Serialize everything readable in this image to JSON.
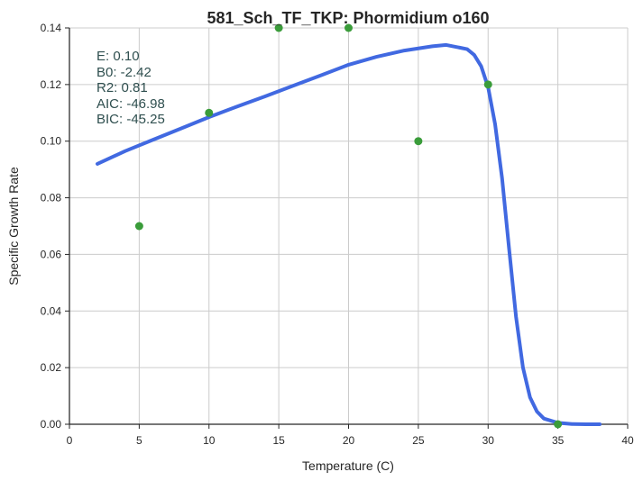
{
  "chart_data": {
    "type": "scatter",
    "title": "581_Sch_TF_TKP: Phormidium o160",
    "xlabel": "Temperature (C)",
    "ylabel": "Specific Growth Rate",
    "xlim": [
      0,
      40
    ],
    "ylim": [
      0,
      0.14
    ],
    "xticks": [
      0,
      5,
      10,
      15,
      20,
      25,
      30,
      35,
      40
    ],
    "yticks": [
      0.0,
      0.02,
      0.04,
      0.06,
      0.08,
      0.1,
      0.12,
      0.14
    ],
    "xtick_labels": [
      "0",
      "5",
      "10",
      "15",
      "20",
      "25",
      "30",
      "35",
      "40"
    ],
    "ytick_labels": [
      "0.00",
      "0.02",
      "0.04",
      "0.06",
      "0.08",
      "0.10",
      "0.12",
      "0.14"
    ],
    "grid": true,
    "points": {
      "color": "#3a9c3a",
      "x": [
        5,
        10,
        15,
        20,
        25,
        30,
        35
      ],
      "y": [
        0.07,
        0.11,
        0.14,
        0.14,
        0.1,
        0.12,
        0.0
      ]
    },
    "fit_curve": {
      "color": "#4169e1",
      "x": [
        2,
        4,
        6,
        8,
        10,
        12,
        14,
        16,
        18,
        20,
        22,
        24,
        26,
        27,
        28,
        28.5,
        29,
        29.5,
        30,
        30.5,
        31,
        31.5,
        32,
        32.5,
        33,
        33.5,
        34,
        35,
        36,
        37,
        38
      ],
      "y": [
        0.092,
        0.0965,
        0.1005,
        0.1045,
        0.1085,
        0.1122,
        0.1158,
        0.1195,
        0.1232,
        0.127,
        0.1298,
        0.132,
        0.1335,
        0.134,
        0.133,
        0.1325,
        0.1305,
        0.1265,
        0.119,
        0.106,
        0.087,
        0.062,
        0.038,
        0.02,
        0.0095,
        0.0045,
        0.002,
        0.0005,
        0.0001,
        0.0,
        0.0
      ]
    },
    "annotations": [
      "E:  0.10",
      "B0:  -2.42",
      "R2:  0.81",
      "AIC: -46.98",
      "BIC: -45.25"
    ]
  }
}
